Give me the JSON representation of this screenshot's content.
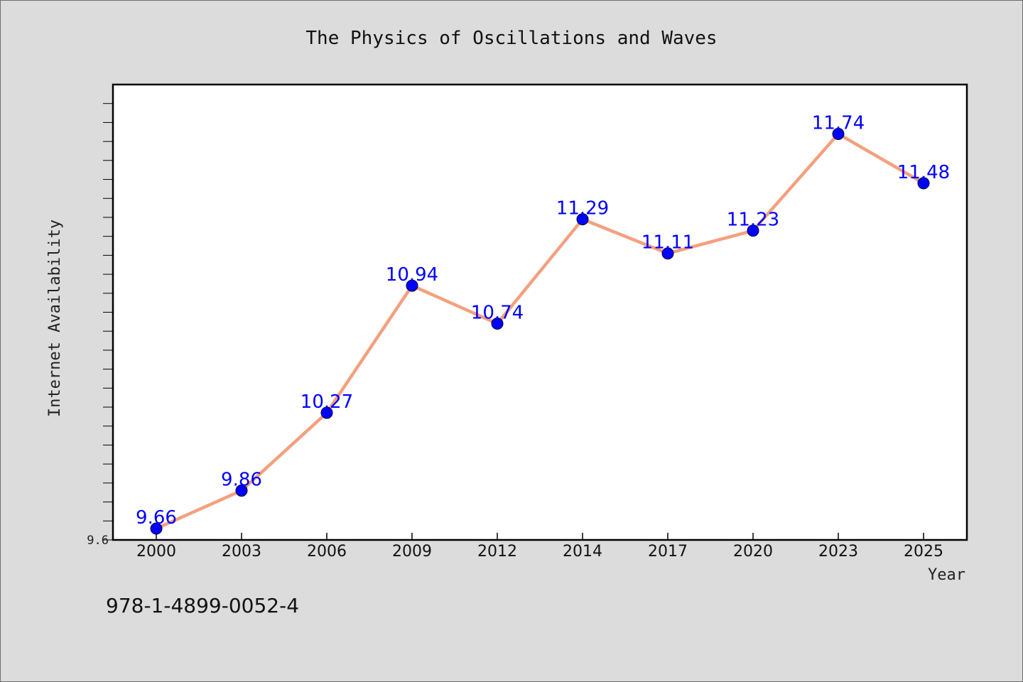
{
  "chart_data": {
    "type": "line",
    "title": "The Physics of Oscillations and Waves",
    "xlabel": "Year",
    "ylabel": "Internet Availability",
    "categories": [
      "2000",
      "2003",
      "2006",
      "2009",
      "2012",
      "2014",
      "2017",
      "2020",
      "2023",
      "2025"
    ],
    "series": [
      {
        "values": [
          9.66,
          9.86,
          10.27,
          10.94,
          10.74,
          11.29,
          11.11,
          11.23,
          11.74,
          11.48
        ]
      }
    ],
    "ylim": [
      9.6,
      12.0
    ],
    "y_tick_labels": [
      "9.6"
    ],
    "grid": false,
    "legend": "none",
    "line_color": "#f4a07e",
    "marker_color": "#0000ff",
    "label_color": "#0000ff"
  },
  "footer": {
    "isbn": "978-1-4899-0052-4"
  }
}
